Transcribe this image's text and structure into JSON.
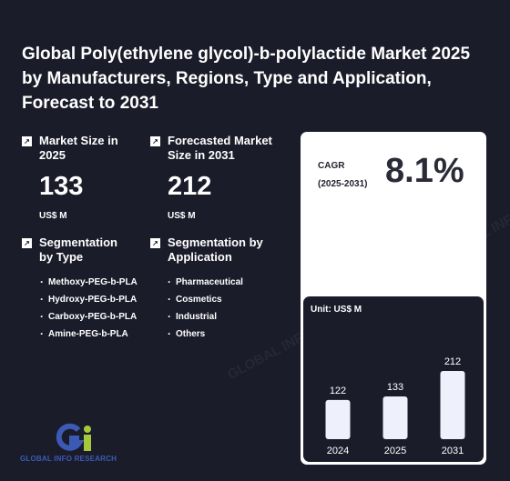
{
  "title": "Global Poly(ethylene glycol)-b-polylactide Market 2025 by Manufacturers, Regions, Type and Application, Forecast to 2031",
  "market_size": {
    "label": "Market Size in 2025",
    "value": "133",
    "unit": "US$ M",
    "icon": "arrow-up-right-icon"
  },
  "forecast": {
    "label": "Forecasted Market Size in 2031",
    "value": "212",
    "unit": "US$ M",
    "icon": "arrow-up-right-icon"
  },
  "segmentation_type": {
    "label": "Segmentation by Type",
    "items": [
      "Methoxy-PEG-b-PLA",
      "Hydroxy-PEG-b-PLA",
      "Carboxy-PEG-b-PLA",
      "Amine-PEG-b-PLA"
    ]
  },
  "segmentation_application": {
    "label": "Segmentation by Application",
    "items": [
      "Pharmaceutical",
      "Cosmetics",
      "Industrial",
      "Others"
    ]
  },
  "cagr": {
    "label": "CAGR",
    "period": "(2025-2031)",
    "value": "8.1%"
  },
  "chart_data": {
    "type": "bar",
    "unit_label": "Unit: US$ M",
    "categories": [
      "2024",
      "2025",
      "2031"
    ],
    "values": [
      122,
      133,
      212
    ],
    "bar_color": "#eef1fb"
  },
  "logo": {
    "text": "GLOBAL INFO RESEARCH",
    "colors": {
      "g": "#3c5ab4",
      "i": "#a8c83c"
    }
  },
  "watermark": "GLOBAL INFO RESEARCH",
  "colors": {
    "background": "#1b1c2a",
    "card": "#ffffff",
    "text": "#ffffff"
  }
}
